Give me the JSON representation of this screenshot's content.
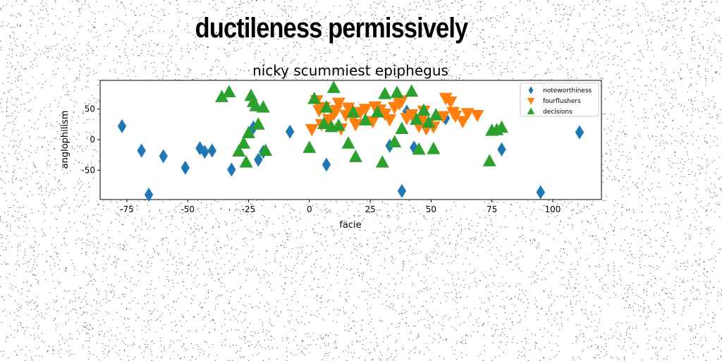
{
  "figure": {
    "title": "ductileness permissively"
  },
  "colors": {
    "noteworthiness": "#1f77b4",
    "fourflushers": "#ff7f0e",
    "decisions": "#2ca02c"
  },
  "chart_data": {
    "type": "scatter",
    "title": "nicky scummiest epiphegus",
    "xlabel": "facie",
    "ylabel": "anglophilism",
    "xlim": [
      -86,
      120
    ],
    "ylim": [
      -98,
      97
    ],
    "xticks": [
      -75,
      -50,
      -25,
      0,
      25,
      50,
      75,
      100
    ],
    "yticks": [
      -50,
      0,
      50
    ],
    "grid": false,
    "legend_position": "top-right",
    "series": [
      {
        "name": "noteworthiness",
        "marker": "diamond",
        "color": "#1f77b4",
        "points": [
          [
            -77,
            22
          ],
          [
            -69,
            -18
          ],
          [
            -66,
            -90
          ],
          [
            -60,
            -27
          ],
          [
            -51,
            -46
          ],
          [
            -45,
            -14
          ],
          [
            -43,
            -20
          ],
          [
            -40,
            -18
          ],
          [
            -32,
            -49
          ],
          [
            -23,
            20
          ],
          [
            -21,
            -33
          ],
          [
            -19,
            -20
          ],
          [
            -8,
            13
          ],
          [
            7,
            -41
          ],
          [
            33,
            -10
          ],
          [
            38,
            -84
          ],
          [
            40,
            46
          ],
          [
            43,
            -13
          ],
          [
            56,
            35
          ],
          [
            79,
            -16
          ],
          [
            95,
            -86
          ],
          [
            111,
            12
          ]
        ]
      },
      {
        "name": "fourflushers",
        "marker": "triangle_down",
        "color": "#ff7f0e",
        "points": [
          [
            1,
            17
          ],
          [
            3,
            64
          ],
          [
            4,
            48
          ],
          [
            5,
            25
          ],
          [
            6,
            53
          ],
          [
            8,
            33
          ],
          [
            10,
            42
          ],
          [
            11,
            48
          ],
          [
            13,
            18
          ],
          [
            12,
            60
          ],
          [
            15,
            40
          ],
          [
            16,
            52
          ],
          [
            18,
            35
          ],
          [
            19,
            25
          ],
          [
            21,
            45
          ],
          [
            23,
            50
          ],
          [
            26,
            30
          ],
          [
            27,
            54
          ],
          [
            29,
            49
          ],
          [
            31,
            42
          ],
          [
            33,
            33
          ],
          [
            35,
            53
          ],
          [
            37,
            59
          ],
          [
            38,
            64
          ],
          [
            40,
            35
          ],
          [
            42,
            41
          ],
          [
            45,
            22
          ],
          [
            46,
            31
          ],
          [
            47,
            47
          ],
          [
            48,
            18
          ],
          [
            49,
            26
          ],
          [
            51,
            21
          ],
          [
            55,
            38
          ],
          [
            56,
            68
          ],
          [
            58,
            62
          ],
          [
            59,
            45
          ],
          [
            60,
            39
          ],
          [
            63,
            30
          ],
          [
            65,
            43
          ],
          [
            69,
            40
          ]
        ]
      },
      {
        "name": "decisions",
        "marker": "triangle_up",
        "color": "#2ca02c",
        "points": [
          [
            -36,
            70
          ],
          [
            -33,
            78
          ],
          [
            -29,
            -19
          ],
          [
            -27,
            -6
          ],
          [
            -26,
            -37
          ],
          [
            -25,
            11
          ],
          [
            -24,
            72
          ],
          [
            -23,
            62
          ],
          [
            -22,
            55
          ],
          [
            -21,
            25
          ],
          [
            -19,
            53
          ],
          [
            -18,
            -18
          ],
          [
            0,
            -13
          ],
          [
            2,
            67
          ],
          [
            6,
            26
          ],
          [
            7,
            53
          ],
          [
            9,
            21
          ],
          [
            10,
            85
          ],
          [
            12,
            23
          ],
          [
            16,
            -6
          ],
          [
            18,
            45
          ],
          [
            19,
            -28
          ],
          [
            23,
            32
          ],
          [
            28,
            45
          ],
          [
            30,
            -37
          ],
          [
            31,
            75
          ],
          [
            35,
            -4
          ],
          [
            36,
            77
          ],
          [
            38,
            18
          ],
          [
            42,
            79
          ],
          [
            44,
            33
          ],
          [
            45,
            -16
          ],
          [
            47,
            48
          ],
          [
            49,
            28
          ],
          [
            51,
            -15
          ],
          [
            52,
            40
          ],
          [
            74,
            -35
          ],
          [
            75,
            15
          ],
          [
            77,
            16
          ],
          [
            79,
            20
          ]
        ]
      }
    ]
  }
}
